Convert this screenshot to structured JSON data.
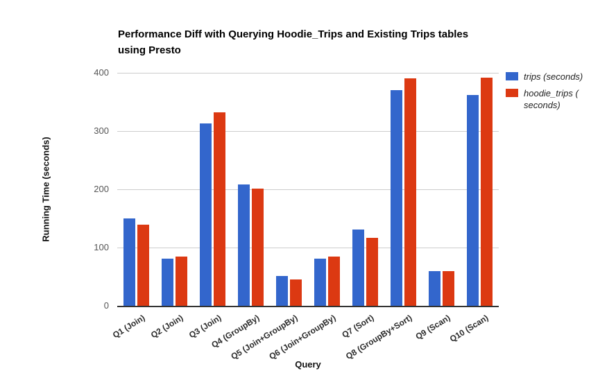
{
  "title": {
    "line1": "Performance Diff with Querying Hoodie_Trips and Existing Trips tables",
    "line2": "using Presto"
  },
  "chart_data": {
    "type": "bar",
    "title": "Performance Diff with Querying Hoodie_Trips and Existing Trips tables using Presto",
    "xlabel": "Query",
    "ylabel": "Running Time (seconds)",
    "ylim": [
      0,
      400
    ],
    "yticks": [
      0,
      100,
      200,
      300,
      400
    ],
    "grid": true,
    "legend_position": "right",
    "categories": [
      "Q1 (Join)",
      "Q2 (Join)",
      "Q3 (Join)",
      "Q4 (GroupBy)",
      "Q5 (Join+GroupBy)",
      "Q6 (Join+GroupBy)",
      "Q7 (Sort)",
      "Q8 (GroupBy+Sort)",
      "Q9 (Scan)",
      "Q10 (Scan)"
    ],
    "series": [
      {
        "name": "trips (seconds)",
        "color": "#3366CC",
        "values": [
          150,
          81,
          313,
          208,
          51,
          81,
          131,
          370,
          60,
          362
        ]
      },
      {
        "name": "hoodie_trips ( seconds)",
        "color": "#DC3912",
        "values": [
          139,
          84,
          332,
          201,
          45,
          85,
          117,
          390,
          59,
          392
        ]
      }
    ]
  },
  "colors": {
    "series_trips": "#3366CC",
    "series_hoodie_trips": "#DC3912",
    "gridline": "#cccccc",
    "axis_line": "#333333",
    "tick_text": "#555555"
  }
}
